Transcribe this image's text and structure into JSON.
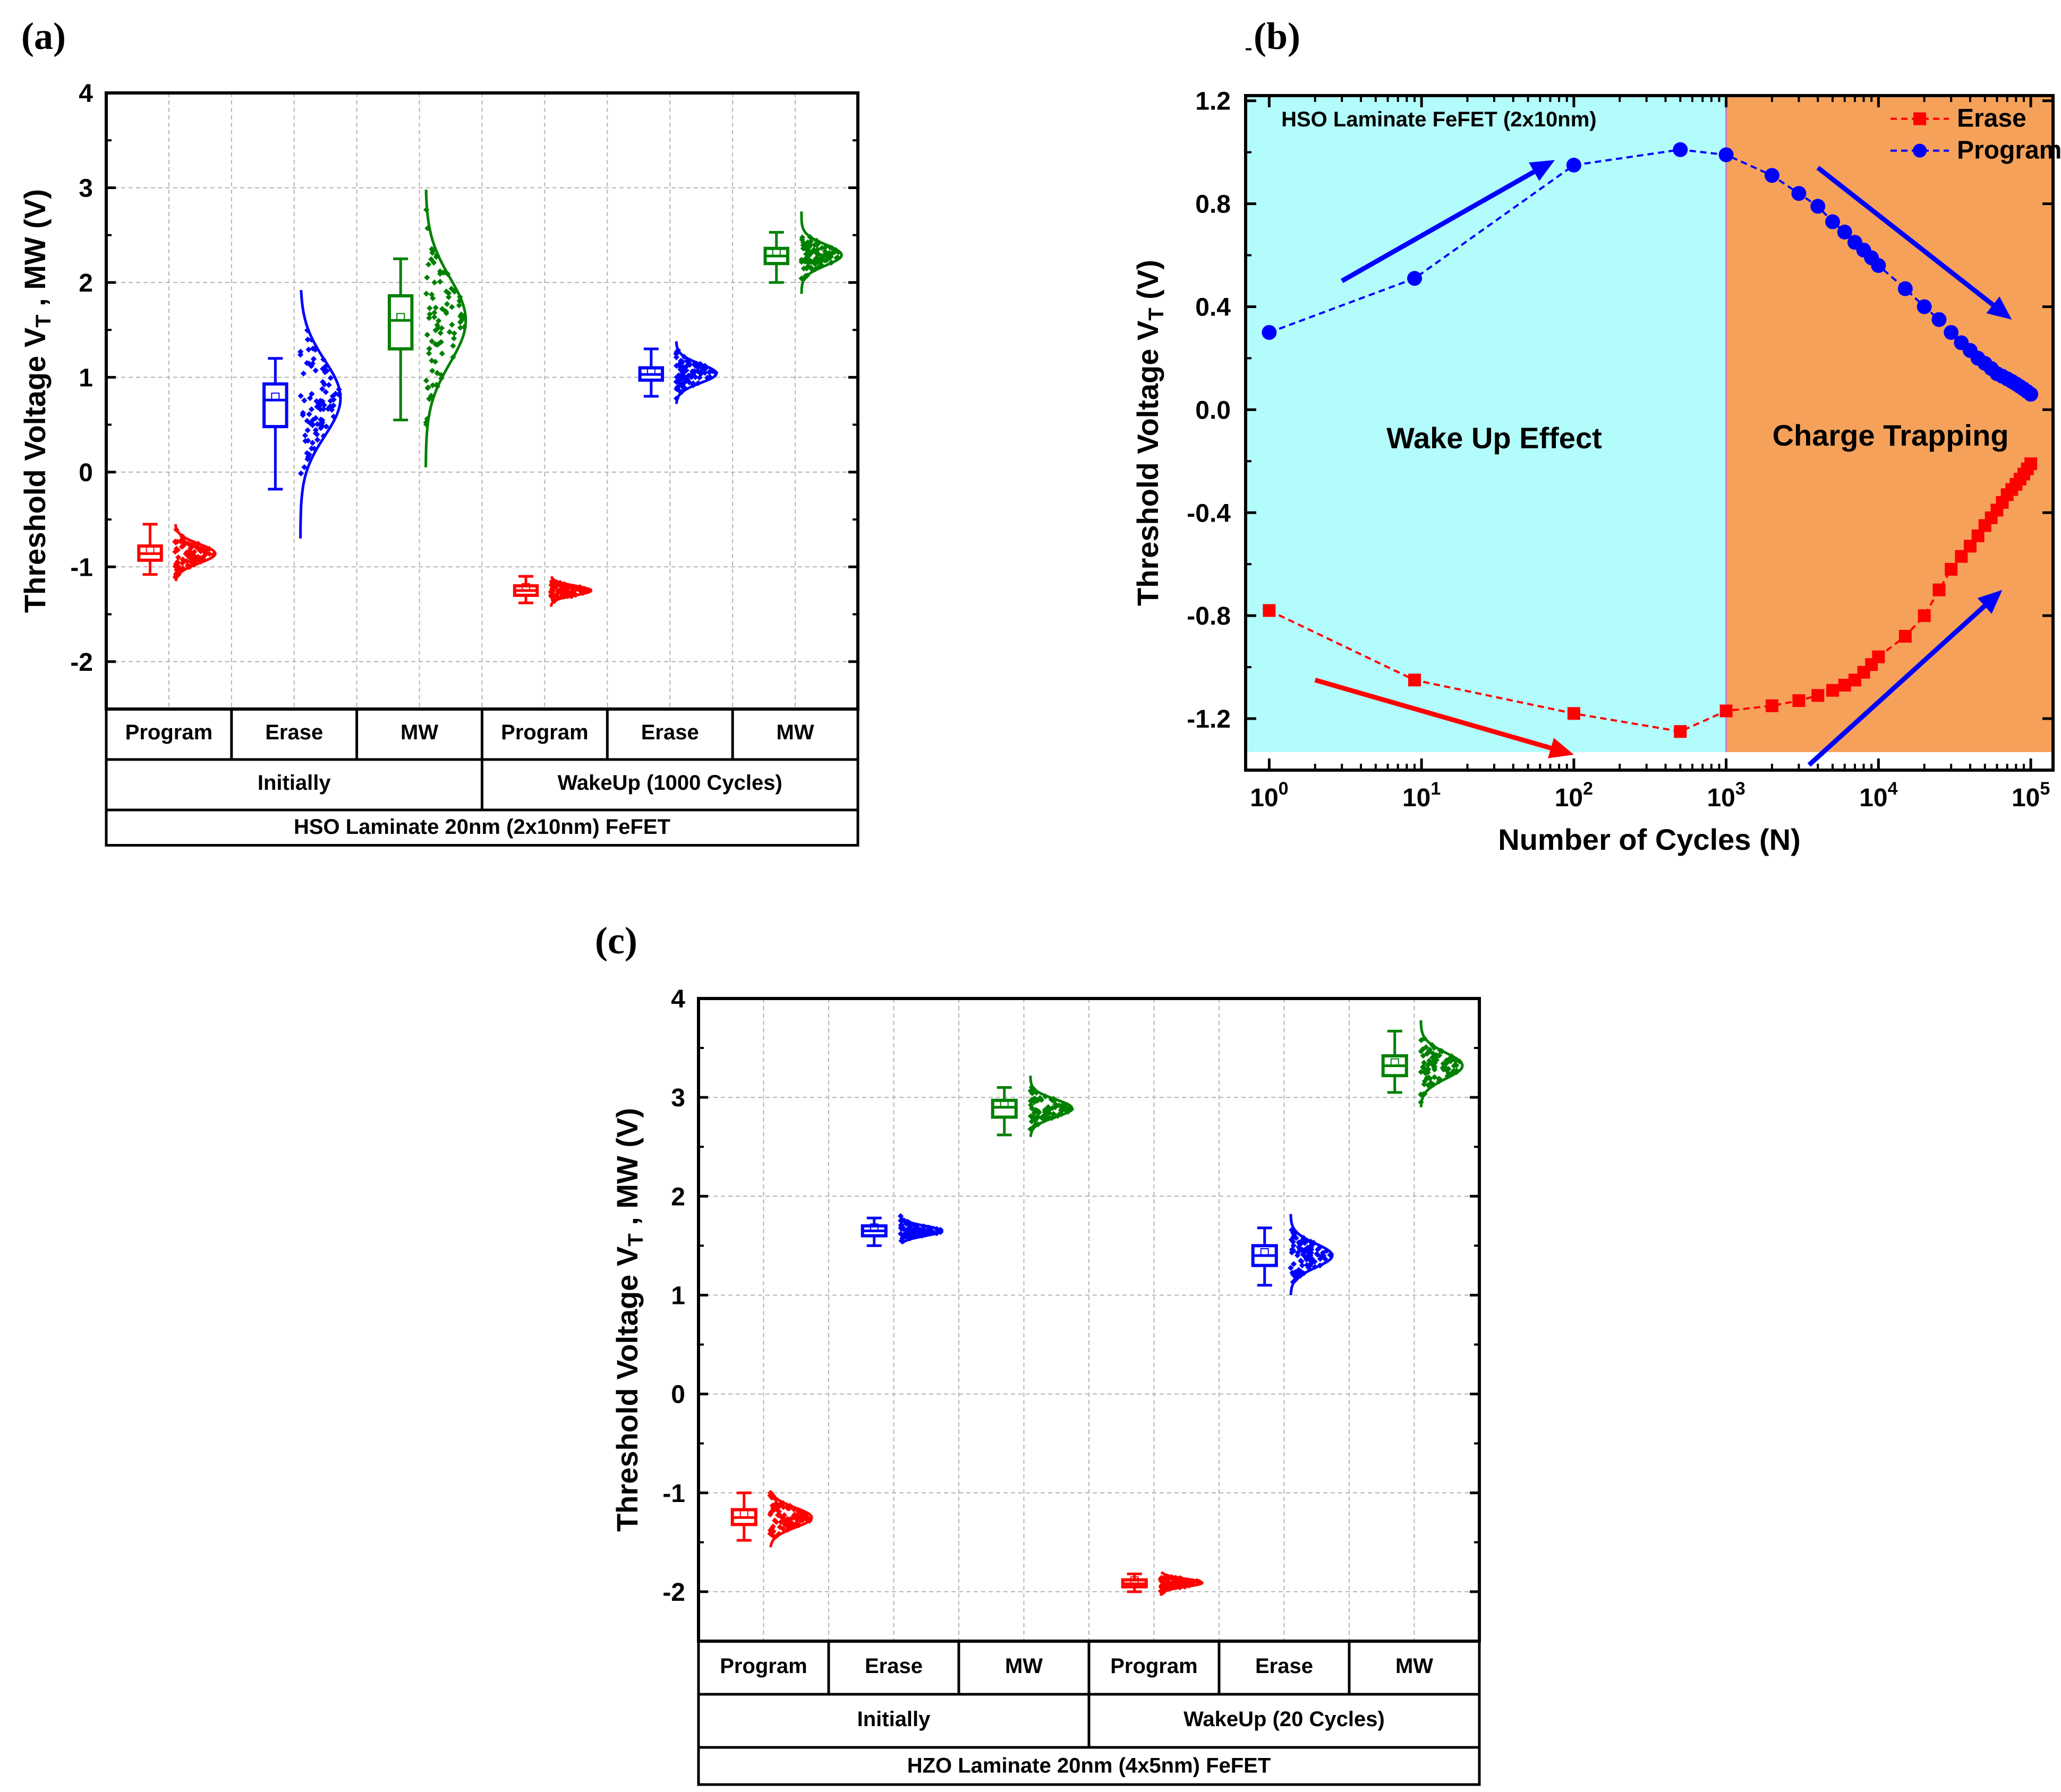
{
  "panel_labels": [
    "(a)",
    "(b)",
    "(c)"
  ],
  "chart_data": [
    {
      "type": "box",
      "panel": "(a)",
      "ylabel": "Threshold Voltage V_T , MW (V)",
      "ylim": [
        -2.5,
        4
      ],
      "yticks": [
        -2,
        -1,
        0,
        1,
        2,
        3,
        4
      ],
      "grid": true,
      "categories": [
        "Program",
        "Erase",
        "MW",
        "Program",
        "Erase",
        "MW"
      ],
      "groups": [
        "Initially",
        "WakeUp (1000 Cycles)"
      ],
      "device": "HSO Laminate 20nm (2x10nm) FeFET",
      "colors": [
        "#ff0000",
        "#0000ff",
        "#008000",
        "#ff0000",
        "#0000ff",
        "#008000"
      ],
      "boxes": [
        {
          "category": "Program",
          "group": "Initially",
          "whisker_low": -1.08,
          "q1": -0.93,
          "median": -0.86,
          "q3": -0.78,
          "whisker_high": -0.55
        },
        {
          "category": "Erase",
          "group": "Initially",
          "whisker_low": -0.18,
          "q1": 0.48,
          "median": 0.76,
          "q3": 0.93,
          "whisker_high": 1.2
        },
        {
          "category": "MW",
          "group": "Initially",
          "whisker_low": 0.55,
          "q1": 1.3,
          "median": 1.6,
          "q3": 1.86,
          "whisker_high": 2.25
        },
        {
          "category": "Program",
          "group": "WakeUp (1000 Cycles)",
          "whisker_low": -1.38,
          "q1": -1.3,
          "median": -1.25,
          "q3": -1.2,
          "whisker_high": -1.1
        },
        {
          "category": "Erase",
          "group": "WakeUp (1000 Cycles)",
          "whisker_low": 0.8,
          "q1": 0.97,
          "median": 1.03,
          "q3": 1.1,
          "whisker_high": 1.3
        },
        {
          "category": "MW",
          "group": "WakeUp (1000 Cycles)",
          "whisker_low": 2.0,
          "q1": 2.2,
          "median": 2.28,
          "q3": 2.36,
          "whisker_high": 2.53
        }
      ],
      "distributions": [
        {
          "min": -1.15,
          "max": -0.55,
          "mean": -0.86,
          "sd": 0.1
        },
        {
          "min": -0.7,
          "max": 1.92,
          "mean": 0.78,
          "sd": 0.4
        },
        {
          "min": 0.05,
          "max": 2.98,
          "mean": 1.6,
          "sd": 0.45
        },
        {
          "min": -1.42,
          "max": -1.1,
          "mean": -1.25,
          "sd": 0.05
        },
        {
          "min": 0.72,
          "max": 1.38,
          "mean": 1.04,
          "sd": 0.1
        },
        {
          "min": 1.88,
          "max": 2.75,
          "mean": 2.29,
          "sd": 0.11
        }
      ]
    },
    {
      "type": "line",
      "panel": "(b)",
      "title": "HSO Laminate FeFET (2x10nm)",
      "xlabel": "Number of Cycles (N)",
      "ylabel": "Threshold Voltage V_T (V)",
      "xscale": "log",
      "xlim": [
        0.7,
        140000
      ],
      "ylim": [
        -1.4,
        1.22
      ],
      "xticks": [
        {
          "value": 1,
          "base": "10",
          "exp": "0"
        },
        {
          "value": 10,
          "base": "10",
          "exp": "1"
        },
        {
          "value": 100,
          "base": "10",
          "exp": "2"
        },
        {
          "value": 1000,
          "base": "10",
          "exp": "3"
        },
        {
          "value": 10000,
          "base": "10",
          "exp": "4"
        },
        {
          "value": 100000,
          "base": "10",
          "exp": "5"
        }
      ],
      "yticks": [
        "-1.2",
        "-0.8",
        "-0.4",
        "0.0",
        "0.4",
        "0.8",
        "1.2"
      ],
      "legend_position": "top-right",
      "regions": [
        {
          "label": "Wake Up Effect",
          "x_from": 0.7,
          "x_to": 1000,
          "color": "#b3fcfc",
          "label_color": "#1a8a1a"
        },
        {
          "label": "Charge Trapping",
          "x_from": 1000,
          "x_to": 140000,
          "color": "#f5a15a",
          "label_color": "#e01010"
        }
      ],
      "series": [
        {
          "name": "Erase",
          "color": "#ff0000",
          "marker": "square",
          "x": [
            1,
            9,
            100,
            500,
            1000,
            2000,
            3000,
            4000,
            5000,
            6000,
            7000,
            8000,
            9000,
            10000,
            15000,
            20000,
            25000,
            30000,
            35000,
            40000,
            45000,
            50000,
            55000,
            60000,
            65000,
            70000,
            75000,
            80000,
            85000,
            90000,
            95000,
            100000
          ],
          "y": [
            -0.78,
            -1.05,
            -1.18,
            -1.25,
            -1.17,
            -1.15,
            -1.13,
            -1.11,
            -1.09,
            -1.07,
            -1.05,
            -1.02,
            -0.99,
            -0.96,
            -0.88,
            -0.8,
            -0.7,
            -0.62,
            -0.57,
            -0.53,
            -0.49,
            -0.45,
            -0.42,
            -0.39,
            -0.36,
            -0.33,
            -0.31,
            -0.29,
            -0.27,
            -0.25,
            -0.23,
            -0.21
          ]
        },
        {
          "name": "Program",
          "color": "#0000ff",
          "marker": "circle",
          "x": [
            1,
            9,
            100,
            500,
            1000,
            2000,
            3000,
            4000,
            5000,
            6000,
            7000,
            8000,
            9000,
            10000,
            15000,
            20000,
            25000,
            30000,
            35000,
            40000,
            45000,
            50000,
            55000,
            60000,
            65000,
            70000,
            75000,
            80000,
            85000,
            90000,
            95000,
            100000
          ],
          "y": [
            0.3,
            0.51,
            0.95,
            1.01,
            0.99,
            0.91,
            0.84,
            0.79,
            0.73,
            0.69,
            0.65,
            0.62,
            0.59,
            0.56,
            0.47,
            0.4,
            0.35,
            0.3,
            0.26,
            0.23,
            0.2,
            0.18,
            0.16,
            0.14,
            0.13,
            0.12,
            0.11,
            0.1,
            0.09,
            0.08,
            0.07,
            0.06
          ]
        }
      ],
      "arrows": [
        {
          "color": "#0000ff",
          "from": [
            3,
            0.5
          ],
          "to": [
            75,
            0.97
          ]
        },
        {
          "color": "#0000ff",
          "from": [
            4000,
            0.94
          ],
          "to": [
            75000,
            0.35
          ]
        },
        {
          "color": "#ff0000",
          "from": [
            2,
            -1.05
          ],
          "to": [
            100,
            -1.34
          ]
        },
        {
          "color": "#0000ff",
          "from": [
            3500,
            -1.38
          ],
          "to": [
            65000,
            -0.7
          ]
        }
      ]
    },
    {
      "type": "box",
      "panel": "(c)",
      "ylabel": "Threshold Voltage V_T , MW (V)",
      "ylim": [
        -2.5,
        4
      ],
      "yticks": [
        -2,
        -1,
        0,
        1,
        2,
        3,
        4
      ],
      "grid": true,
      "categories": [
        "Program",
        "Erase",
        "MW",
        "Program",
        "Erase",
        "MW"
      ],
      "groups": [
        "Initially",
        "WakeUp (20 Cycles)"
      ],
      "device": "HZO Laminate 20nm (4x5nm) FeFET",
      "colors": [
        "#ff0000",
        "#0000ff",
        "#008000",
        "#ff0000",
        "#0000ff",
        "#008000"
      ],
      "boxes": [
        {
          "category": "Program",
          "group": "Initially",
          "whisker_low": -1.48,
          "q1": -1.32,
          "median": -1.25,
          "q3": -1.17,
          "whisker_high": -1.0
        },
        {
          "category": "Erase",
          "group": "Initially",
          "whisker_low": 1.5,
          "q1": 1.6,
          "median": 1.65,
          "q3": 1.7,
          "whisker_high": 1.78
        },
        {
          "category": "MW",
          "group": "Initially",
          "whisker_low": 2.62,
          "q1": 2.8,
          "median": 2.9,
          "q3": 2.97,
          "whisker_high": 3.1
        },
        {
          "category": "Program",
          "group": "WakeUp (20 Cycles)",
          "whisker_low": -2.0,
          "q1": -1.95,
          "median": -1.92,
          "q3": -1.88,
          "whisker_high": -1.82
        },
        {
          "category": "Erase",
          "group": "WakeUp (20 Cycles)",
          "whisker_low": 1.1,
          "q1": 1.3,
          "median": 1.4,
          "q3": 1.5,
          "whisker_high": 1.68
        },
        {
          "category": "MW",
          "group": "WakeUp (20 Cycles)",
          "whisker_low": 3.05,
          "q1": 3.22,
          "median": 3.32,
          "q3": 3.42,
          "whisker_high": 3.67
        }
      ],
      "distributions": [
        {
          "min": -1.55,
          "max": -1.0,
          "mean": -1.25,
          "sd": 0.1
        },
        {
          "min": 1.52,
          "max": 1.82,
          "mean": 1.65,
          "sd": 0.05
        },
        {
          "min": 2.6,
          "max": 3.22,
          "mean": 2.89,
          "sd": 0.09
        },
        {
          "min": -2.04,
          "max": -1.8,
          "mean": -1.91,
          "sd": 0.04
        },
        {
          "min": 1.0,
          "max": 1.82,
          "mean": 1.4,
          "sd": 0.12
        },
        {
          "min": 2.9,
          "max": 3.78,
          "mean": 3.32,
          "sd": 0.13
        }
      ]
    }
  ]
}
